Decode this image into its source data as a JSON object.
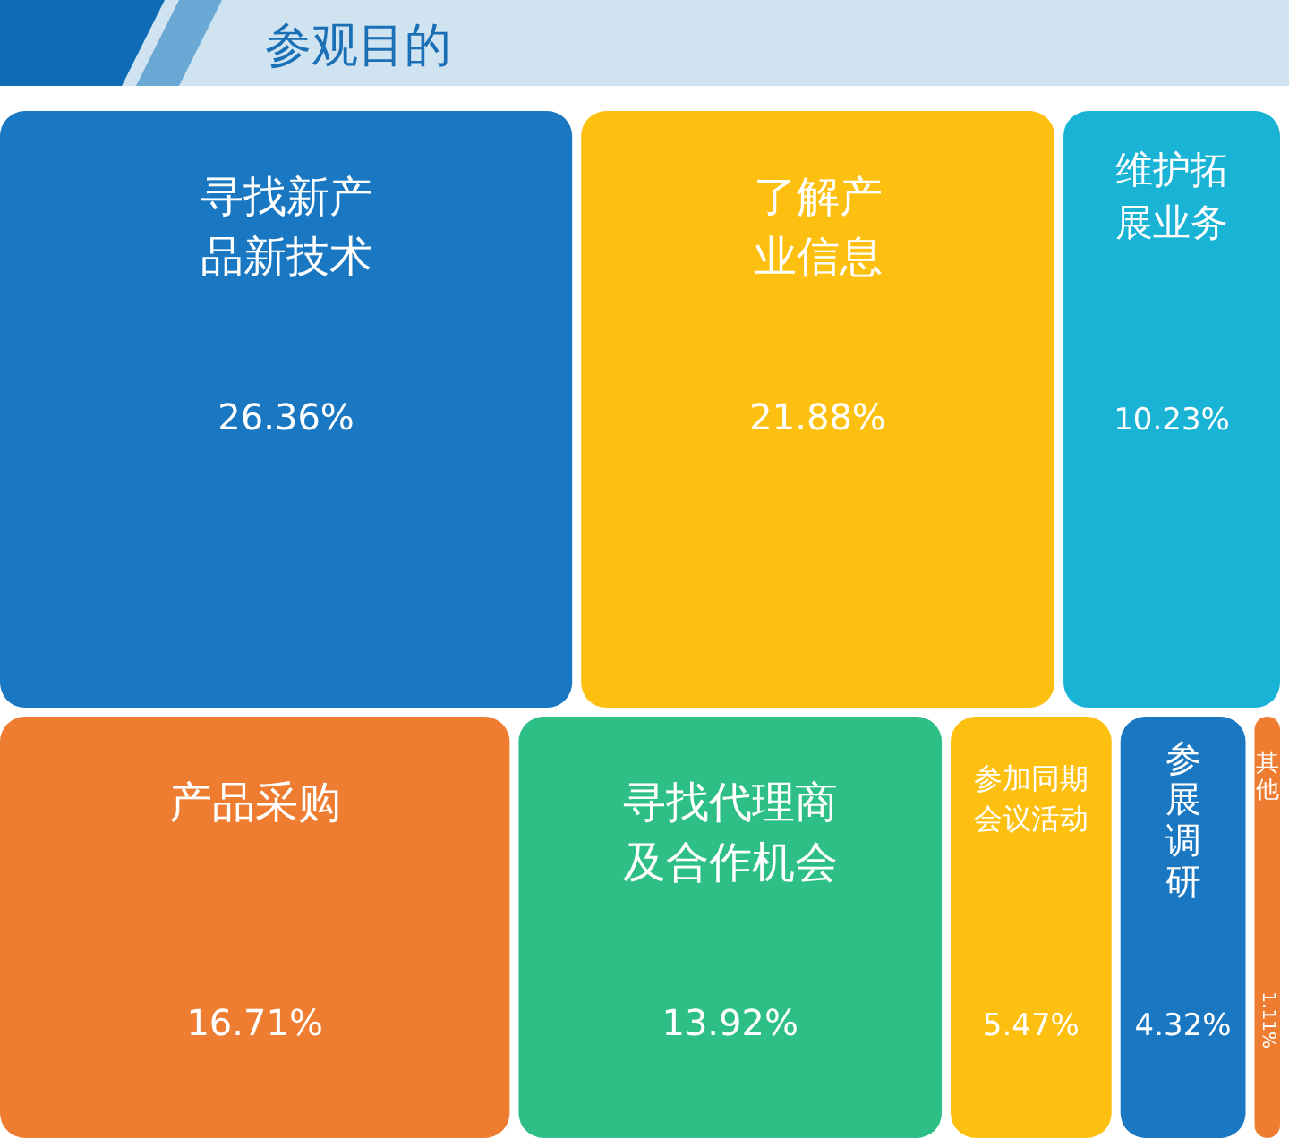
{
  "chart_data": {
    "type": "other",
    "title": "参观目的",
    "categories": [
      "寻找新产品新技术",
      "了解产业信息",
      "维护拓展业务",
      "产品采购",
      "寻找代理商及合作机会",
      "参加同期会议活动",
      "参展调研",
      "其他"
    ],
    "values": [
      26.36,
      21.88,
      10.23,
      16.71,
      13.92,
      5.47,
      4.32,
      1.11
    ],
    "value_labels": [
      "26.36%",
      "21.88%",
      "10.23%",
      "16.71%",
      "13.92%",
      "5.47%",
      "4.32%",
      "1.11%"
    ],
    "colors": [
      "#1a78c2",
      "#fdc010",
      "#18b3d5",
      "#ee7d31",
      "#2dbf86",
      "#fdc010",
      "#1a78c2",
      "#ee7d31"
    ]
  }
}
